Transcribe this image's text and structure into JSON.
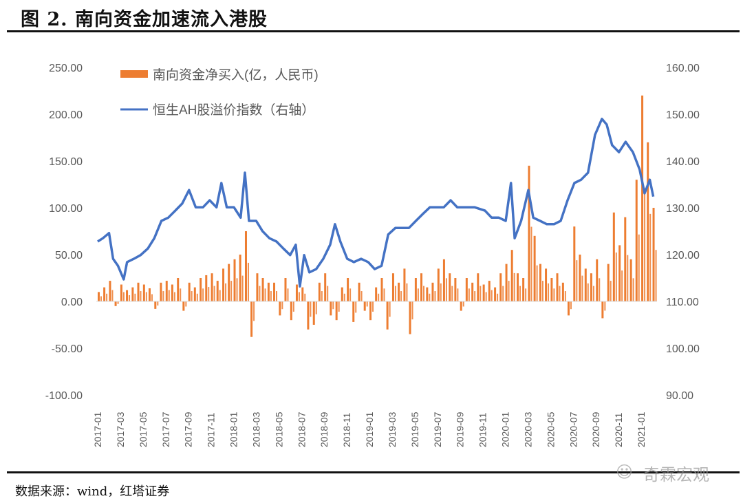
{
  "title": "图 2. 南向资金加速流入港股",
  "source": "数据来源：wind，红塔证券",
  "watermark": "奇霖宏观",
  "chart_data": {
    "type": "bar+line",
    "title": "",
    "legend": {
      "placement": "top-left-inside",
      "entries": [
        "南向资金净买入(亿，人民币)",
        "恒生AH股溢价指数（右轴）"
      ]
    },
    "colors": {
      "bars": "#ED7D31",
      "line": "#4472C4"
    },
    "grid": false,
    "left_axis": {
      "ylim": [
        -100,
        250
      ],
      "ticks": [
        "-100.00",
        "-50.00",
        "0.00",
        "50.00",
        "100.00",
        "150.00",
        "200.00",
        "250.00"
      ]
    },
    "right_axis": {
      "ylim": [
        90,
        160
      ],
      "ticks": [
        "90.00",
        "100.00",
        "110.00",
        "120.00",
        "130.00",
        "140.00",
        "150.00",
        "160.00"
      ]
    },
    "x_ticks": [
      "2017-01",
      "2017-03",
      "2017-05",
      "2017-07",
      "2017-09",
      "2017-11",
      "2018-01",
      "2018-03",
      "2018-05",
      "2018-07",
      "2018-09",
      "2018-11",
      "2019-01",
      "2019-03",
      "2019-05",
      "2019-07",
      "2019-09",
      "2019-11",
      "2020-01",
      "2020-03",
      "2020-05",
      "2020-07",
      "2020-09",
      "2020-11",
      "2021-01"
    ],
    "series": [
      {
        "name": "南向资金净买入(亿，人民币)",
        "axis": "left",
        "kind": "bar",
        "data": [
          [
            "2017-01-01",
            10
          ],
          [
            "2017-01-16",
            15
          ],
          [
            "2017-02-01",
            22
          ],
          [
            "2017-02-16",
            -5
          ],
          [
            "2017-03-01",
            18
          ],
          [
            "2017-03-16",
            12
          ],
          [
            "2017-04-01",
            15
          ],
          [
            "2017-04-16",
            20
          ],
          [
            "2017-05-01",
            18
          ],
          [
            "2017-05-16",
            14
          ],
          [
            "2017-06-01",
            -8
          ],
          [
            "2017-06-16",
            20
          ],
          [
            "2017-07-01",
            22
          ],
          [
            "2017-07-16",
            18
          ],
          [
            "2017-08-01",
            25
          ],
          [
            "2017-08-16",
            -10
          ],
          [
            "2017-09-01",
            20
          ],
          [
            "2017-09-16",
            15
          ],
          [
            "2017-10-01",
            25
          ],
          [
            "2017-10-16",
            28
          ],
          [
            "2017-11-01",
            30
          ],
          [
            "2017-11-16",
            22
          ],
          [
            "2017-12-01",
            35
          ],
          [
            "2017-12-16",
            40
          ],
          [
            "2018-01-01",
            45
          ],
          [
            "2018-01-16",
            50
          ],
          [
            "2018-02-01",
            75
          ],
          [
            "2018-02-16",
            -38
          ],
          [
            "2018-03-01",
            30
          ],
          [
            "2018-03-16",
            25
          ],
          [
            "2018-04-01",
            20
          ],
          [
            "2018-04-16",
            20
          ],
          [
            "2018-05-01",
            -15
          ],
          [
            "2018-05-16",
            25
          ],
          [
            "2018-06-01",
            -20
          ],
          [
            "2018-06-16",
            18
          ],
          [
            "2018-07-01",
            15
          ],
          [
            "2018-07-16",
            -30
          ],
          [
            "2018-08-01",
            -25
          ],
          [
            "2018-08-16",
            20
          ],
          [
            "2018-09-01",
            30
          ],
          [
            "2018-09-16",
            -15
          ],
          [
            "2018-10-01",
            -20
          ],
          [
            "2018-10-16",
            15
          ],
          [
            "2018-11-01",
            25
          ],
          [
            "2018-11-16",
            -22
          ],
          [
            "2018-12-01",
            20
          ],
          [
            "2018-12-16",
            -10
          ],
          [
            "2019-01-01",
            -20
          ],
          [
            "2019-01-16",
            15
          ],
          [
            "2019-02-01",
            25
          ],
          [
            "2019-02-16",
            -30
          ],
          [
            "2019-03-01",
            30
          ],
          [
            "2019-03-16",
            20
          ],
          [
            "2019-04-01",
            35
          ],
          [
            "2019-04-16",
            -35
          ],
          [
            "2019-05-01",
            25
          ],
          [
            "2019-05-16",
            30
          ],
          [
            "2019-06-01",
            15
          ],
          [
            "2019-06-16",
            20
          ],
          [
            "2019-07-01",
            35
          ],
          [
            "2019-07-16",
            45
          ],
          [
            "2019-08-01",
            30
          ],
          [
            "2019-08-16",
            25
          ],
          [
            "2019-09-01",
            -10
          ],
          [
            "2019-09-16",
            25
          ],
          [
            "2019-10-01",
            20
          ],
          [
            "2019-10-16",
            30
          ],
          [
            "2019-11-01",
            18
          ],
          [
            "2019-11-16",
            22
          ],
          [
            "2019-12-01",
            15
          ],
          [
            "2019-12-16",
            30
          ],
          [
            "2020-01-01",
            40
          ],
          [
            "2020-01-16",
            55
          ],
          [
            "2020-02-01",
            30
          ],
          [
            "2020-02-16",
            25
          ],
          [
            "2020-03-01",
            145
          ],
          [
            "2020-03-16",
            70
          ],
          [
            "2020-04-01",
            40
          ],
          [
            "2020-04-16",
            35
          ],
          [
            "2020-05-01",
            25
          ],
          [
            "2020-05-16",
            30
          ],
          [
            "2020-06-01",
            20
          ],
          [
            "2020-06-16",
            -15
          ],
          [
            "2020-07-01",
            80
          ],
          [
            "2020-07-16",
            50
          ],
          [
            "2020-08-01",
            35
          ],
          [
            "2020-08-16",
            30
          ],
          [
            "2020-09-01",
            45
          ],
          [
            "2020-09-16",
            -18
          ],
          [
            "2020-10-01",
            40
          ],
          [
            "2020-10-16",
            95
          ],
          [
            "2020-11-01",
            60
          ],
          [
            "2020-11-16",
            90
          ],
          [
            "2020-12-01",
            45
          ],
          [
            "2020-12-16",
            130
          ],
          [
            "2021-01-01",
            220
          ],
          [
            "2021-01-16",
            170
          ],
          [
            "2021-02-01",
            100
          ]
        ]
      },
      {
        "name": "恒生AH股溢价指数（右轴）",
        "axis": "right",
        "kind": "line",
        "data": [
          [
            "2017-01-01",
            122.8
          ],
          [
            "2017-01-15",
            123.5
          ],
          [
            "2017-02-01",
            124.6
          ],
          [
            "2017-02-12",
            119.1
          ],
          [
            "2017-02-25",
            117.6
          ],
          [
            "2017-03-10",
            114.7
          ],
          [
            "2017-03-19",
            118.4
          ],
          [
            "2017-04-07",
            119.1
          ],
          [
            "2017-04-25",
            119.9
          ],
          [
            "2017-05-14",
            121.3
          ],
          [
            "2017-06-01",
            123.5
          ],
          [
            "2017-06-20",
            127.2
          ],
          [
            "2017-07-08",
            127.9
          ],
          [
            "2017-07-27",
            129.4
          ],
          [
            "2017-08-15",
            130.9
          ],
          [
            "2017-09-03",
            133.8
          ],
          [
            "2017-09-21",
            130.1
          ],
          [
            "2017-10-10",
            130.1
          ],
          [
            "2017-10-28",
            131.6
          ],
          [
            "2017-11-16",
            130.1
          ],
          [
            "2017-11-29",
            135.3
          ],
          [
            "2017-12-13",
            130.1
          ],
          [
            "2018-01-02",
            130.1
          ],
          [
            "2018-01-20",
            127.9
          ],
          [
            "2018-02-01",
            137.5
          ],
          [
            "2018-02-12",
            127.2
          ],
          [
            "2018-03-01",
            127.2
          ],
          [
            "2018-03-18",
            125.0
          ],
          [
            "2018-04-06",
            123.5
          ],
          [
            "2018-04-25",
            122.8
          ],
          [
            "2018-05-13",
            121.3
          ],
          [
            "2018-06-01",
            119.9
          ],
          [
            "2018-06-16",
            122.1
          ],
          [
            "2018-06-27",
            113.2
          ],
          [
            "2018-07-08",
            119.9
          ],
          [
            "2018-07-22",
            116.2
          ],
          [
            "2018-08-10",
            116.9
          ],
          [
            "2018-08-29",
            119.1
          ],
          [
            "2018-09-17",
            122.1
          ],
          [
            "2018-09-30",
            126.5
          ],
          [
            "2018-10-14",
            122.8
          ],
          [
            "2018-11-02",
            119.1
          ],
          [
            "2018-11-20",
            118.4
          ],
          [
            "2018-12-09",
            119.1
          ],
          [
            "2018-12-28",
            118.4
          ],
          [
            "2019-01-15",
            116.9
          ],
          [
            "2019-02-03",
            117.6
          ],
          [
            "2019-02-21",
            124.3
          ],
          [
            "2019-03-10",
            125.7
          ],
          [
            "2019-03-28",
            125.7
          ],
          [
            "2019-04-16",
            125.7
          ],
          [
            "2019-05-04",
            127.2
          ],
          [
            "2019-05-23",
            128.7
          ],
          [
            "2019-06-11",
            130.1
          ],
          [
            "2019-06-30",
            130.1
          ],
          [
            "2019-07-18",
            130.1
          ],
          [
            "2019-08-06",
            131.6
          ],
          [
            "2019-08-24",
            130.1
          ],
          [
            "2019-09-12",
            130.1
          ],
          [
            "2019-10-10",
            130.1
          ],
          [
            "2019-11-07",
            129.4
          ],
          [
            "2019-11-25",
            127.9
          ],
          [
            "2019-12-14",
            127.9
          ],
          [
            "2020-01-02",
            127.2
          ],
          [
            "2020-01-16",
            135.3
          ],
          [
            "2020-01-26",
            123.5
          ],
          [
            "2020-02-13",
            127.2
          ],
          [
            "2020-03-02",
            133.8
          ],
          [
            "2020-03-15",
            127.9
          ],
          [
            "2020-04-03",
            127.2
          ],
          [
            "2020-04-21",
            126.5
          ],
          [
            "2020-05-10",
            126.5
          ],
          [
            "2020-05-28",
            127.2
          ],
          [
            "2020-06-16",
            131.6
          ],
          [
            "2020-07-04",
            135.3
          ],
          [
            "2020-07-22",
            136.0
          ],
          [
            "2020-08-10",
            137.5
          ],
          [
            "2020-08-29",
            145.6
          ],
          [
            "2020-09-17",
            149.0
          ],
          [
            "2020-09-30",
            147.8
          ],
          [
            "2020-10-14",
            143.4
          ],
          [
            "2020-11-02",
            141.9
          ],
          [
            "2020-11-20",
            144.1
          ],
          [
            "2020-12-09",
            141.9
          ],
          [
            "2020-12-27",
            138.2
          ],
          [
            "2021-01-10",
            133.1
          ],
          [
            "2021-01-24",
            136.0
          ],
          [
            "2021-02-03",
            132.4
          ]
        ]
      }
    ]
  }
}
